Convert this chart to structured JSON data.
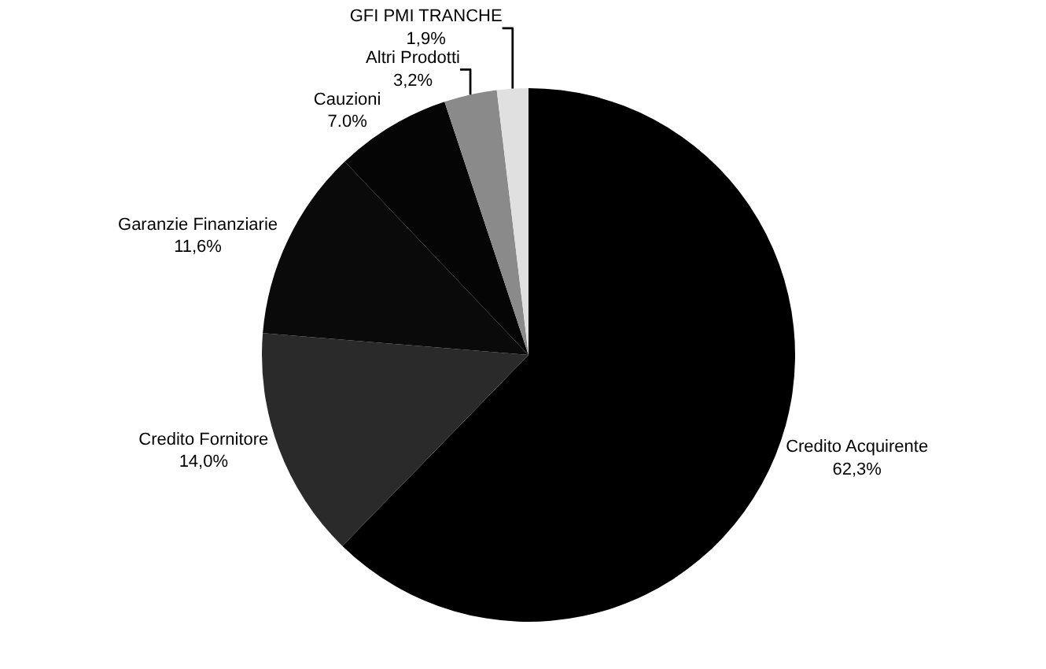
{
  "chart_data": {
    "type": "pie",
    "categories": [
      "Credito Acquirente",
      "Credito Fornitore",
      "Garanzie Finanziarie",
      "Cauzioni",
      "Altri Prodotti",
      "GFI PMI TRANCHE"
    ],
    "values": [
      62.3,
      14.0,
      11.6,
      7.0,
      3.2,
      1.9
    ],
    "value_labels": [
      "62,3%",
      "14,0%",
      "11,6%",
      "7.0%",
      "3,2%",
      "1,9%"
    ],
    "colors": [
      "#000000",
      "#2a2a2a",
      "#0a0a0a",
      "#050505",
      "#8a8a8a",
      "#e0e0e0"
    ],
    "legend": false
  }
}
